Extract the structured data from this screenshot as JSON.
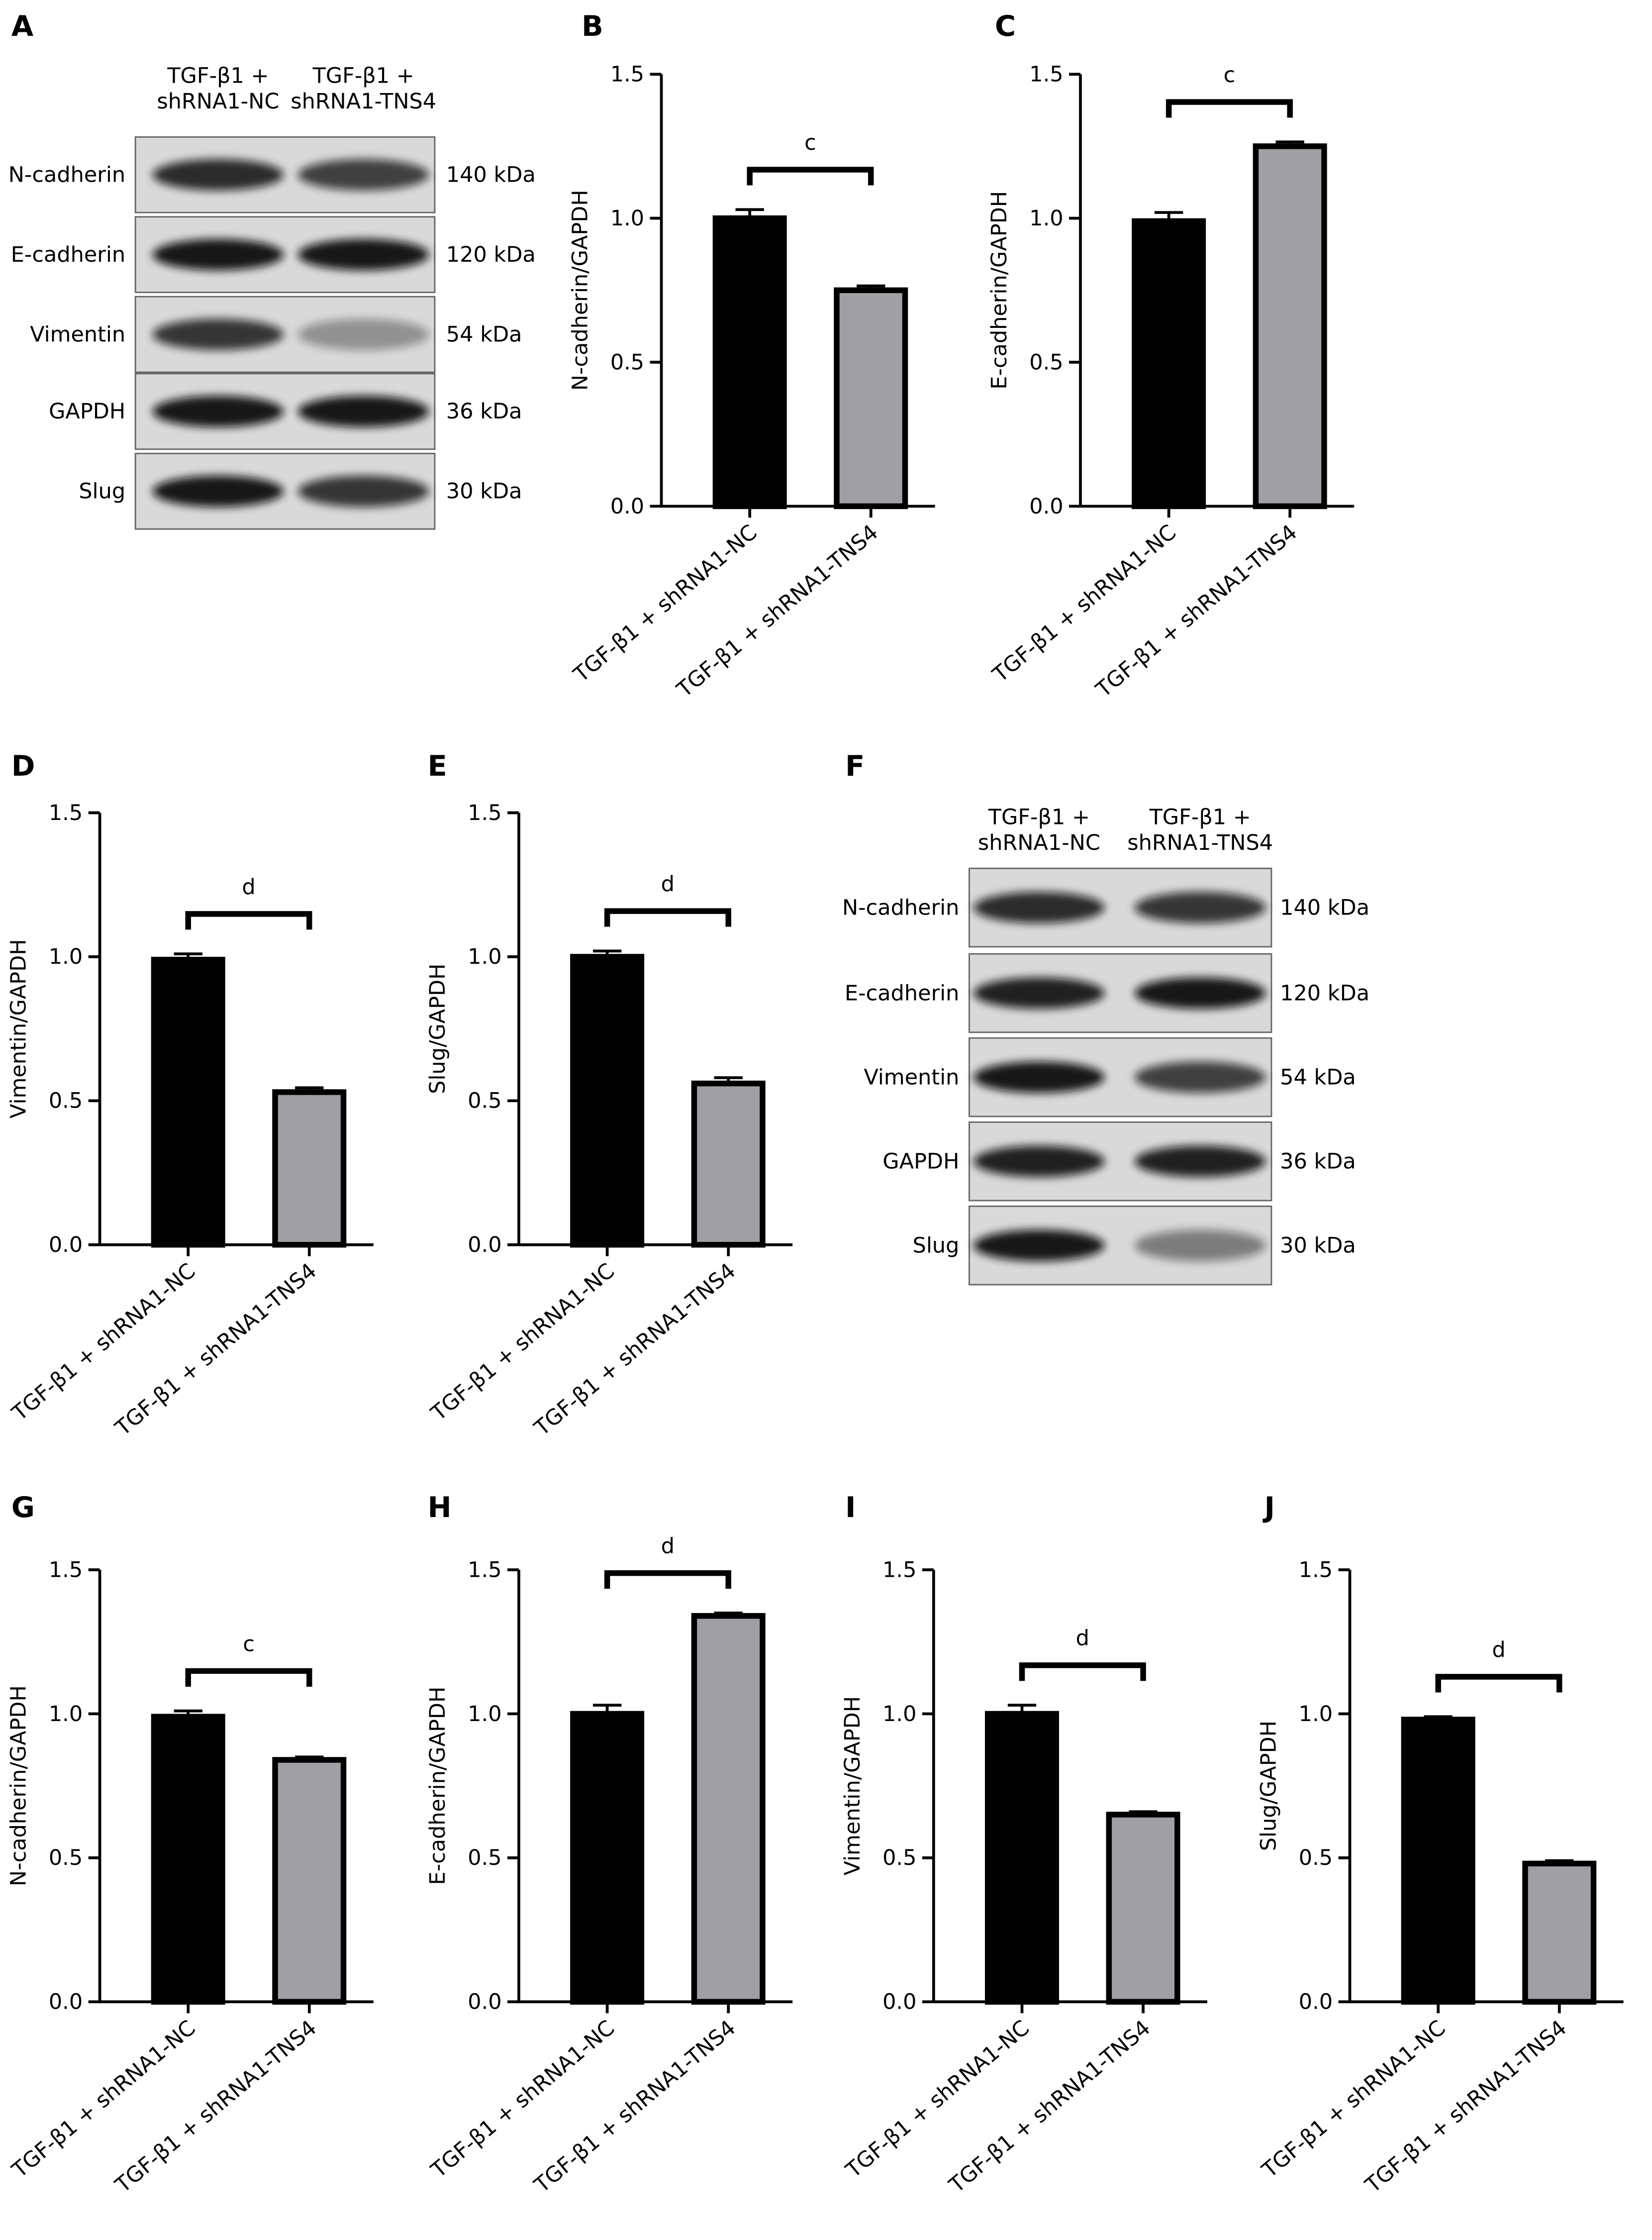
{
  "chart_data": [
    {
      "type": "bar",
      "label": "B",
      "ylabel": "N-cadherin/GAPDH",
      "categories": [
        "TGF-β1 + shRNA1-NC",
        "TGF-β1 + shRNA1-TNS4"
      ],
      "values": [
        1.0,
        0.75
      ],
      "errors": [
        0.03,
        0.015
      ],
      "colors": [
        "#000000",
        "#a09fa4"
      ],
      "significance": "c",
      "ylim": [
        0,
        1.5
      ],
      "yticks": [
        {
          "value": 0,
          "label": "0.0"
        },
        0.5,
        {
          "value": 1,
          "label": "1.0"
        },
        1.5
      ]
    },
    {
      "type": "bar",
      "label": "C",
      "ylabel": "E-cadherin/GAPDH",
      "categories": [
        "TGF-β1 + shRNA1-NC",
        "TGF-β1 + shRNA1-TNS4"
      ],
      "values": [
        0.99,
        1.25
      ],
      "errors": [
        0.03,
        0.015
      ],
      "colors": [
        "#000000",
        "#a09fa4"
      ],
      "significance": "c",
      "ylim": [
        0,
        1.5
      ],
      "yticks": [
        {
          "value": 0,
          "label": "0.0"
        },
        0.5,
        {
          "value": 1,
          "label": "1.0"
        },
        1.5
      ]
    },
    {
      "type": "bar",
      "label": "D",
      "ylabel": "Vimentin/GAPDH",
      "categories": [
        "TGF-β1 + shRNA1-NC",
        "TGF-β1 + shRNA1-TNS4"
      ],
      "values": [
        0.99,
        0.53
      ],
      "errors": [
        0.02,
        0.015
      ],
      "colors": [
        "#000000",
        "#a09fa4"
      ],
      "significance": "d",
      "ylim": [
        0,
        1.5
      ],
      "yticks": [
        {
          "value": 0,
          "label": "0.0"
        },
        0.5,
        {
          "value": 1,
          "label": "1.0"
        },
        1.5
      ]
    },
    {
      "type": "bar",
      "label": "E",
      "ylabel": "Slug/GAPDH",
      "categories": [
        "TGF-β1 + shRNA1-NC",
        "TGF-β1 + shRNA1-TNS4"
      ],
      "values": [
        1.0,
        0.56
      ],
      "errors": [
        0.02,
        0.02
      ],
      "colors": [
        "#000000",
        "#a09fa4"
      ],
      "significance": "d",
      "ylim": [
        0,
        1.5
      ],
      "yticks": [
        {
          "value": 0,
          "label": "0.0"
        },
        0.5,
        {
          "value": 1,
          "label": "1.0"
        },
        1.5
      ]
    },
    {
      "type": "bar",
      "label": "G",
      "ylabel": "N-cadherin/GAPDH",
      "categories": [
        "TGF-β1 + shRNA1-NC",
        "TGF-β1 + shRNA1-TNS4"
      ],
      "values": [
        0.99,
        0.84
      ],
      "errors": [
        0.02,
        0.01
      ],
      "colors": [
        "#000000",
        "#a09fa4"
      ],
      "significance": "c",
      "ylim": [
        0,
        1.5
      ],
      "yticks": [
        {
          "value": 0,
          "label": "0.0"
        },
        0.5,
        {
          "value": 1,
          "label": "1.0"
        },
        1.5
      ]
    },
    {
      "type": "bar",
      "label": "H",
      "ylabel": "E-cadherin/GAPDH",
      "categories": [
        "TGF-β1 + shRNA1-NC",
        "TGF-β1 + shRNA1-TNS4"
      ],
      "values": [
        1.0,
        1.34
      ],
      "errors": [
        0.03,
        0.01
      ],
      "colors": [
        "#000000",
        "#a09fa4"
      ],
      "significance": "d",
      "ylim": [
        0,
        1.5
      ],
      "yticks": [
        {
          "value": 0,
          "label": "0.0"
        },
        0.5,
        {
          "value": 1,
          "label": "1.0"
        },
        1.5
      ]
    },
    {
      "type": "bar",
      "label": "I",
      "ylabel": "Vimentin/GAPDH",
      "categories": [
        "TGF-β1 + shRNA1-NC",
        "TGF-β1 + shRNA1-TNS4"
      ],
      "values": [
        1.0,
        0.65
      ],
      "errors": [
        0.03,
        0.01
      ],
      "colors": [
        "#000000",
        "#a09fa4"
      ],
      "significance": "d",
      "ylim": [
        0,
        1.5
      ],
      "yticks": [
        {
          "value": 0,
          "label": "0.0"
        },
        0.5,
        {
          "value": 1,
          "label": "1.0"
        },
        1.5
      ]
    },
    {
      "type": "bar",
      "label": "J",
      "ylabel": "Slug/GAPDH",
      "categories": [
        "TGF-β1 + shRNA1-NC",
        "TGF-β1 + shRNA1-TNS4"
      ],
      "values": [
        0.98,
        0.48
      ],
      "errors": [
        0.01,
        0.01
      ],
      "colors": [
        "#000000",
        "#a09fa4"
      ],
      "significance": "d",
      "ylim": [
        0,
        1.5
      ],
      "yticks": [
        {
          "value": 0,
          "label": "0.0"
        },
        0.5,
        {
          "value": 1,
          "label": "1.0"
        },
        1.5
      ]
    }
  ],
  "blots": [
    {
      "label": "A",
      "columns": [
        [
          "TGF-β1 +",
          "shRNA1-NC"
        ],
        [
          "TGF-β1 +",
          "shRNA1-TNS4"
        ]
      ],
      "rows": [
        {
          "protein": "N-cadherin",
          "size": "140 kDa"
        },
        {
          "protein": "E-cadherin",
          "size": "120 kDa"
        },
        {
          "protein": "Vimentin",
          "size": "54 kDa"
        },
        {
          "protein": "GAPDH",
          "size": "36 kDa"
        },
        {
          "protein": "Slug",
          "size": "30 kDa"
        }
      ]
    },
    {
      "label": "F",
      "columns": [
        [
          "TGF-β1 +",
          "shRNA1-NC"
        ],
        [
          "TGF-β1 +",
          "shRNA1-TNS4"
        ]
      ],
      "rows": [
        {
          "protein": "N-cadherin",
          "size": "140 kDa"
        },
        {
          "protein": "E-cadherin",
          "size": "120 kDa"
        },
        {
          "protein": "Vimentin",
          "size": "54 kDa"
        },
        {
          "protein": "GAPDH",
          "size": "36 kDa"
        },
        {
          "protein": "Slug",
          "size": "30 kDa"
        }
      ]
    }
  ]
}
